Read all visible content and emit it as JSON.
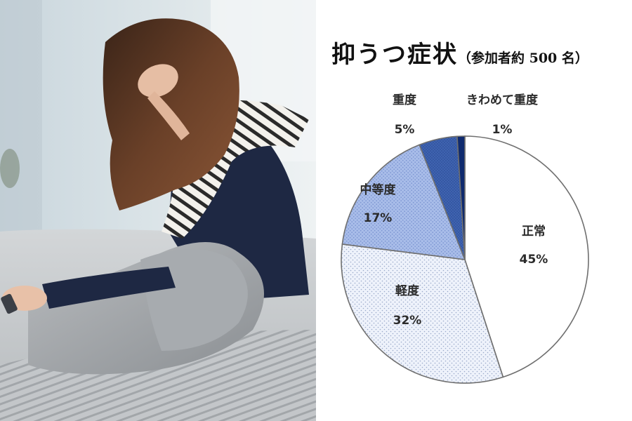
{
  "chart_data": {
    "type": "pie",
    "title": "抑うつ症状",
    "subtitle": "（参加者約 500 名）",
    "slices": [
      {
        "label": "正常",
        "value": 45,
        "value_label": "45%",
        "color": "#ffffff",
        "pattern": "none"
      },
      {
        "label": "軽度",
        "value": 32,
        "value_label": "32%",
        "color": "#eef2fb",
        "pattern": "light-dots"
      },
      {
        "label": "中等度",
        "value": 17,
        "value_label": "17%",
        "color": "#a9bde9",
        "pattern": "medium-dots"
      },
      {
        "label": "重度",
        "value": 5,
        "value_label": "5%",
        "color": "#3f63b0",
        "pattern": "dark-dots"
      },
      {
        "label": "きわめて重度",
        "value": 1,
        "value_label": "1%",
        "color": "#0f2a6e",
        "pattern": "solid"
      }
    ]
  },
  "colors": {
    "outline": "#6f6f6f",
    "label_text": "#2b2b2b"
  },
  "photo": {
    "subject": "woman-holding-head-on-bed"
  }
}
